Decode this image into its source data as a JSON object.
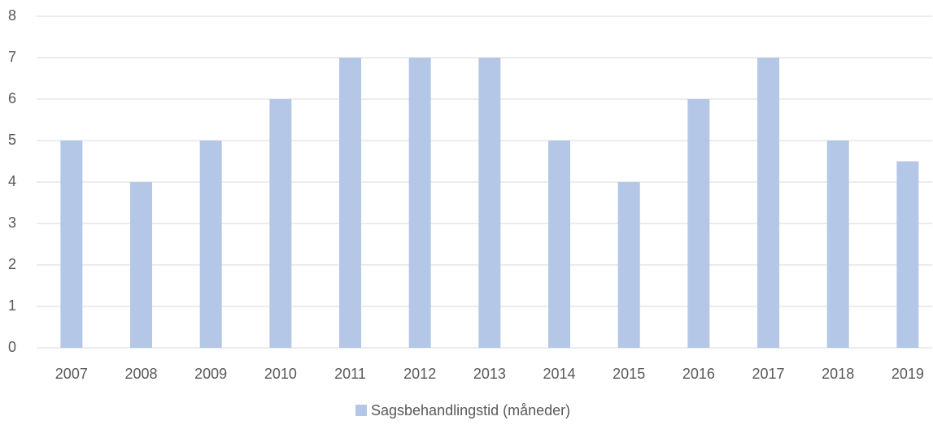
{
  "chart_data": {
    "type": "bar",
    "categories": [
      "2007",
      "2008",
      "2009",
      "2010",
      "2011",
      "2012",
      "2013",
      "2014",
      "2015",
      "2016",
      "2017",
      "2018",
      "2019"
    ],
    "series": [
      {
        "name": "Sagsbehandlingstid (måneder)",
        "color": "#b4c7e7",
        "values": [
          5,
          4,
          5,
          6,
          7,
          7,
          7,
          5,
          4,
          6,
          7,
          5,
          4.5
        ]
      }
    ],
    "ylim": [
      0,
      8
    ],
    "yticks": [
      0,
      1,
      2,
      3,
      4,
      5,
      6,
      7,
      8
    ],
    "grid": true,
    "legend": "bottom"
  }
}
